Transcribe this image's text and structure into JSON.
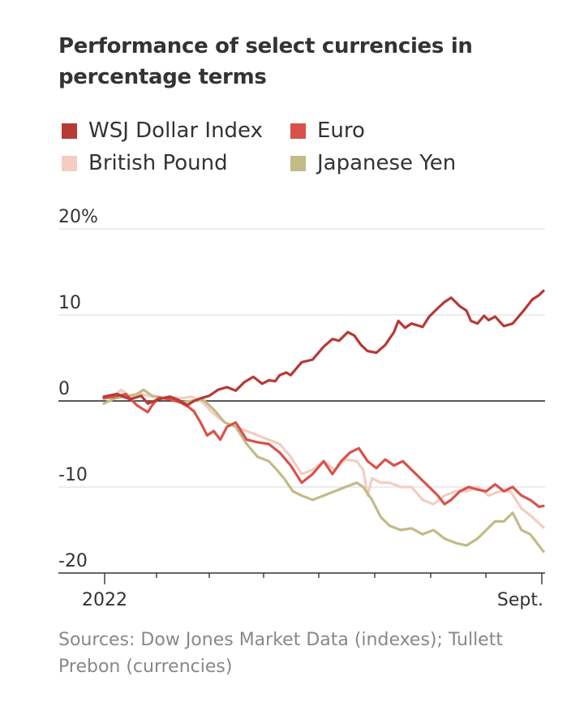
{
  "title": "Performance of select currencies in percentage terms",
  "source": "Sources: Dow Jones Market Data (indexes); Tullett Prebon (currencies)",
  "chart_data": {
    "type": "line",
    "ylim": [
      -20,
      20
    ],
    "ytick_values": [
      20,
      10,
      0,
      -10,
      -20
    ],
    "ytick_labels": [
      "20%",
      "10",
      "0",
      "-10",
      "-20"
    ],
    "x_tick_labels": [
      "2022",
      "Sept."
    ],
    "legend_placement": "top",
    "grid": true,
    "series": [
      {
        "name": "WSJ Dollar Index",
        "color": "#b73a35",
        "x": [
          0,
          6,
          12,
          17,
          20,
          25,
          30,
          34,
          38,
          41,
          44,
          48,
          52,
          56,
          60,
          64,
          68,
          72,
          75,
          78,
          80,
          83,
          85,
          90,
          95,
          100,
          104,
          107,
          111,
          114,
          117,
          120,
          124,
          128,
          132,
          134,
          137,
          140,
          145,
          148,
          152,
          155,
          158,
          162,
          165,
          167,
          170,
          173,
          175,
          178
        ],
        "values": [
          0.5,
          0.8,
          0.2,
          0.6,
          -0.3,
          0.2,
          0.5,
          0.1,
          -0.5,
          0.0,
          0.3,
          0.6,
          1.3,
          1.6,
          1.2,
          2.2,
          2.8,
          2.0,
          2.4,
          2.3,
          3.0,
          3.3,
          3.0,
          4.5,
          4.8,
          6.3,
          7.2,
          7.0,
          8.0,
          7.6,
          6.5,
          5.8,
          5.6,
          6.5,
          8.0,
          9.3,
          8.5,
          9.0,
          8.6,
          9.8,
          10.8,
          11.5,
          12.0,
          11.0,
          10.5,
          9.3,
          9.0,
          9.9,
          9.4,
          9.8
        ],
        "x2": [
          178,
          182,
          186,
          191,
          195,
          198,
          200
        ],
        "values2": [
          9.8,
          8.7,
          9.0,
          10.5,
          11.8,
          12.3,
          12.8
        ]
      },
      {
        "name": "Euro",
        "color": "#d9524a",
        "x": [
          0,
          5,
          10,
          15,
          20,
          22,
          25,
          30,
          35,
          38,
          41,
          44,
          47,
          50,
          53,
          56,
          60,
          65,
          70,
          75,
          80,
          85,
          90,
          95,
          100,
          104,
          108,
          112,
          116,
          120,
          124,
          128,
          132,
          136,
          140,
          144,
          148,
          152,
          155,
          158,
          162,
          166,
          170,
          174,
          178,
          182,
          186,
          190,
          194,
          198,
          200
        ],
        "values": [
          0.3,
          0.5,
          0.8,
          -0.5,
          -1.3,
          -0.5,
          0.4,
          0.2,
          -0.2,
          -0.6,
          -1.2,
          -2.5,
          -4.0,
          -3.5,
          -4.5,
          -3.0,
          -2.5,
          -4.5,
          -4.8,
          -5.0,
          -6.0,
          -7.5,
          -9.5,
          -8.5,
          -7.0,
          -8.5,
          -7.0,
          -6.0,
          -5.5,
          -7.0,
          -7.8,
          -6.8,
          -7.5,
          -7.0,
          -8.0,
          -9.0,
          -10.0,
          -11.0,
          -12.0,
          -11.5,
          -10.5,
          -10.0,
          -10.3,
          -10.5,
          -9.7,
          -10.5,
          -10.0,
          -11.0,
          -11.5,
          -12.3,
          -12.2
        ],
        "x2": [],
        "values2": []
      },
      {
        "name": "British Pound",
        "color": "#f3cdc2",
        "x": [
          0,
          5,
          8,
          12,
          16,
          20,
          25,
          30,
          35,
          40,
          45,
          50,
          55,
          60,
          65,
          70,
          75,
          80,
          85,
          90,
          95,
          100,
          105,
          110,
          115,
          118,
          120,
          122,
          126,
          130,
          135,
          140,
          145,
          150,
          155,
          160,
          165,
          170,
          175,
          180,
          185,
          190,
          195,
          200
        ],
        "values": [
          0.3,
          0.7,
          1.3,
          0.5,
          0.9,
          0.6,
          0.3,
          0.5,
          0.3,
          0.5,
          -0.2,
          -1.5,
          -2.5,
          -3.0,
          -3.5,
          -4.0,
          -4.5,
          -5.0,
          -6.5,
          -8.5,
          -8.0,
          -7.0,
          -8.0,
          -6.8,
          -7.0,
          -8.0,
          -11.0,
          -9.0,
          -9.5,
          -9.5,
          -10.0,
          -10.0,
          -11.5,
          -12.0,
          -11.0,
          -10.5,
          -10.5,
          -10.0,
          -11.0,
          -10.5,
          -10.5,
          -12.5,
          -13.5,
          -14.7
        ],
        "x2": [],
        "values2": []
      },
      {
        "name": "Japanese Yen",
        "color": "#c2bb88",
        "x": [
          0,
          5,
          10,
          15,
          18,
          22,
          26,
          30,
          35,
          40,
          45,
          50,
          55,
          60,
          65,
          70,
          75,
          78,
          82,
          86,
          90,
          95,
          100,
          105,
          110,
          115,
          118,
          122,
          126,
          130,
          135,
          140,
          145,
          150,
          155,
          160,
          165,
          170,
          174,
          178,
          182,
          186,
          190,
          194,
          197,
          200
        ],
        "values": [
          -0.3,
          0.3,
          0.5,
          0.8,
          1.3,
          0.6,
          0.4,
          0.3,
          -0.2,
          0.0,
          0.2,
          -1.0,
          -2.5,
          -3.0,
          -5.0,
          -6.5,
          -7.0,
          -7.8,
          -9.0,
          -10.5,
          -11.0,
          -11.5,
          -11.0,
          -10.5,
          -10.0,
          -9.5,
          -10.0,
          -11.5,
          -13.5,
          -14.5,
          -15.0,
          -14.8,
          -15.5,
          -15.0,
          -16.0,
          -16.5,
          -16.8,
          -16.0,
          -15.0,
          -14.0,
          -14.0,
          -13.0,
          -15.0,
          -15.5,
          -16.5,
          -17.5
        ],
        "x2": [],
        "values2": []
      }
    ]
  }
}
